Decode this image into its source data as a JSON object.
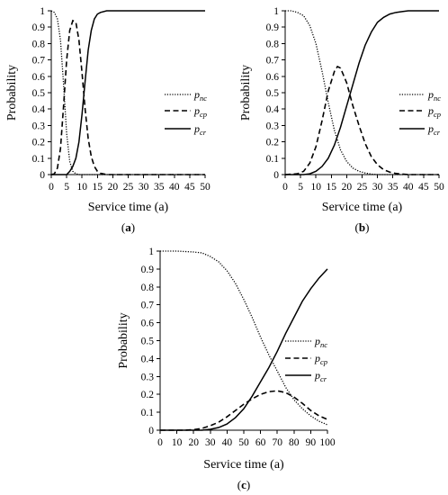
{
  "chart_data": [
    {
      "panel_label": "(a)",
      "type": "line",
      "xlabel": "Service time (a)",
      "ylabel": "Probability",
      "xlim": [
        0,
        50
      ],
      "ylim": [
        0,
        1
      ],
      "x_ticks": [
        0,
        5,
        10,
        15,
        20,
        25,
        30,
        35,
        40,
        45,
        50
      ],
      "y_ticks": [
        0,
        0.1,
        0.2,
        0.3,
        0.4,
        0.5,
        0.6,
        0.7,
        0.8,
        0.9,
        1
      ],
      "legend_position": "right",
      "series": [
        {
          "name": "pnc",
          "name_main": "p",
          "name_sub": "nc",
          "style": "dotted",
          "x": [
            0,
            1,
            2,
            3,
            4,
            5,
            6,
            7,
            8,
            9,
            10,
            12,
            15,
            20,
            50
          ],
          "y": [
            1,
            0.99,
            0.95,
            0.82,
            0.55,
            0.25,
            0.08,
            0.02,
            0.005,
            0,
            0,
            0,
            0,
            0,
            0
          ]
        },
        {
          "name": "pcp",
          "name_main": "p",
          "name_sub": "cp",
          "style": "dashed",
          "x": [
            0,
            1,
            2,
            3,
            4,
            5,
            6,
            7,
            8,
            9,
            10,
            11,
            12,
            13,
            14,
            15,
            16,
            18,
            20,
            50
          ],
          "y": [
            0,
            0.005,
            0.04,
            0.16,
            0.42,
            0.7,
            0.88,
            0.94,
            0.93,
            0.82,
            0.62,
            0.4,
            0.22,
            0.11,
            0.05,
            0.02,
            0.008,
            0,
            0,
            0
          ]
        },
        {
          "name": "pcr",
          "name_main": "p",
          "name_sub": "cr",
          "style": "solid",
          "x": [
            0,
            3,
            5,
            6,
            7,
            8,
            9,
            10,
            11,
            12,
            13,
            14,
            15,
            16,
            18,
            20,
            25,
            50
          ],
          "y": [
            0,
            0,
            0,
            0.02,
            0.05,
            0.1,
            0.2,
            0.37,
            0.57,
            0.76,
            0.88,
            0.95,
            0.98,
            0.99,
            1,
            1,
            1,
            1
          ]
        }
      ]
    },
    {
      "panel_label": "(b)",
      "type": "line",
      "xlabel": "Service time (a)",
      "ylabel": "Probability",
      "xlim": [
        0,
        50
      ],
      "ylim": [
        0,
        1
      ],
      "x_ticks": [
        0,
        5,
        10,
        15,
        20,
        25,
        30,
        35,
        40,
        45,
        50
      ],
      "y_ticks": [
        0,
        0.1,
        0.2,
        0.3,
        0.4,
        0.5,
        0.6,
        0.7,
        0.8,
        0.9,
        1
      ],
      "legend_position": "right",
      "series": [
        {
          "name": "pnc",
          "name_main": "p",
          "name_sub": "nc",
          "style": "dotted",
          "x": [
            0,
            2,
            4,
            6,
            8,
            10,
            12,
            14,
            16,
            18,
            20,
            22,
            24,
            26,
            28,
            30,
            35,
            40,
            50
          ],
          "y": [
            1,
            1,
            0.99,
            0.97,
            0.91,
            0.8,
            0.63,
            0.44,
            0.27,
            0.15,
            0.08,
            0.04,
            0.02,
            0.01,
            0.003,
            0,
            0,
            0,
            0
          ]
        },
        {
          "name": "pcp",
          "name_main": "p",
          "name_sub": "cp",
          "style": "dashed",
          "x": [
            0,
            4,
            6,
            8,
            10,
            12,
            14,
            16,
            17,
            18,
            20,
            22,
            24,
            26,
            28,
            30,
            32,
            34,
            36,
            38,
            40,
            50
          ],
          "y": [
            0,
            0.005,
            0.02,
            0.07,
            0.17,
            0.33,
            0.51,
            0.63,
            0.66,
            0.65,
            0.56,
            0.42,
            0.3,
            0.19,
            0.11,
            0.06,
            0.03,
            0.015,
            0.007,
            0.003,
            0,
            0
          ]
        },
        {
          "name": "pcr",
          "name_main": "p",
          "name_sub": "cr",
          "style": "solid",
          "x": [
            0,
            6,
            8,
            10,
            12,
            14,
            16,
            18,
            20,
            22,
            24,
            26,
            28,
            30,
            32,
            34,
            36,
            38,
            40,
            45,
            50
          ],
          "y": [
            0,
            0,
            0.005,
            0.02,
            0.05,
            0.1,
            0.18,
            0.29,
            0.42,
            0.55,
            0.68,
            0.79,
            0.87,
            0.93,
            0.96,
            0.98,
            0.99,
            0.995,
            1,
            1,
            1
          ]
        }
      ]
    },
    {
      "panel_label": "(c)",
      "type": "line",
      "xlabel": "Service time (a)",
      "ylabel": "Probability",
      "xlim": [
        0,
        100
      ],
      "ylim": [
        0,
        1
      ],
      "x_ticks": [
        0,
        10,
        20,
        30,
        40,
        50,
        60,
        70,
        80,
        90,
        100
      ],
      "y_ticks": [
        0,
        0.1,
        0.2,
        0.3,
        0.4,
        0.5,
        0.6,
        0.7,
        0.8,
        0.9,
        1
      ],
      "legend_position": "right",
      "series": [
        {
          "name": "pnc",
          "name_main": "p",
          "name_sub": "nc",
          "style": "dotted",
          "x": [
            0,
            10,
            20,
            25,
            30,
            35,
            40,
            45,
            50,
            55,
            60,
            65,
            70,
            75,
            80,
            85,
            90,
            95,
            100
          ],
          "y": [
            1,
            1,
            0.995,
            0.99,
            0.97,
            0.94,
            0.89,
            0.82,
            0.73,
            0.63,
            0.52,
            0.42,
            0.33,
            0.24,
            0.17,
            0.12,
            0.08,
            0.05,
            0.03
          ]
        },
        {
          "name": "pcp",
          "name_main": "p",
          "name_sub": "cp",
          "style": "dashed",
          "x": [
            0,
            15,
            20,
            25,
            30,
            35,
            40,
            45,
            50,
            55,
            60,
            65,
            70,
            75,
            80,
            85,
            90,
            95,
            100
          ],
          "y": [
            0,
            0,
            0.003,
            0.01,
            0.025,
            0.045,
            0.075,
            0.11,
            0.145,
            0.175,
            0.2,
            0.215,
            0.22,
            0.21,
            0.185,
            0.15,
            0.11,
            0.08,
            0.06
          ]
        },
        {
          "name": "pcr",
          "name_main": "p",
          "name_sub": "cr",
          "style": "solid",
          "x": [
            0,
            25,
            30,
            35,
            40,
            45,
            50,
            55,
            60,
            65,
            70,
            75,
            80,
            85,
            90,
            95,
            100
          ],
          "y": [
            0,
            0,
            0.005,
            0.015,
            0.035,
            0.07,
            0.12,
            0.19,
            0.27,
            0.35,
            0.44,
            0.54,
            0.63,
            0.72,
            0.79,
            0.85,
            0.9
          ]
        }
      ]
    }
  ]
}
